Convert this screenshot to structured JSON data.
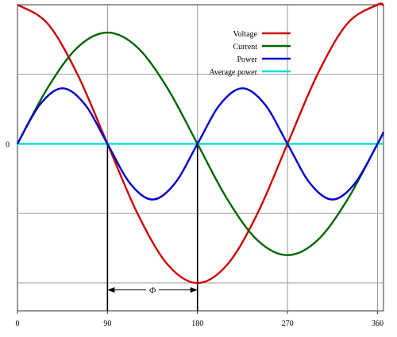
{
  "chart_data": {
    "type": "line",
    "title": "",
    "xlabel": "",
    "ylabel": "",
    "xlim": [
      0,
      366
    ],
    "ylim": [
      -1.2,
      1.0
    ],
    "x_ticks": [
      0,
      90,
      180,
      270,
      360
    ],
    "x_tick_labels": [
      "0",
      "90",
      "180",
      "270",
      "360"
    ],
    "y_tick_labels": [
      "0"
    ],
    "y_gridlines": [
      -1.0,
      -0.5,
      0,
      0.5
    ],
    "grid": true,
    "legend_position": "top-right",
    "series": [
      {
        "name": "Voltage",
        "color": "#cc0000",
        "x": [
          0,
          30,
          60,
          90,
          120,
          150,
          180,
          210,
          240,
          270,
          300,
          330,
          360,
          366
        ],
        "y": [
          1.0,
          0.866,
          0.5,
          0.0,
          -0.5,
          -0.866,
          -1.0,
          -0.866,
          -0.5,
          0.0,
          0.5,
          0.866,
          1.0,
          0.995
        ]
      },
      {
        "name": "Current",
        "color": "#006600",
        "x": [
          0,
          30,
          60,
          90,
          120,
          150,
          180,
          210,
          240,
          270,
          300,
          330,
          360,
          366
        ],
        "y": [
          0.0,
          0.4,
          0.693,
          0.8,
          0.693,
          0.4,
          0.0,
          -0.4,
          -0.693,
          -0.8,
          -0.693,
          -0.4,
          0.0,
          0.084
        ]
      },
      {
        "name": "Power",
        "color": "#0000cc",
        "x": [
          0,
          22.5,
          45,
          67.5,
          90,
          112.5,
          135,
          157.5,
          180,
          202.5,
          225,
          247.5,
          270,
          292.5,
          315,
          337.5,
          360,
          366
        ],
        "y": [
          0.0,
          0.283,
          0.4,
          0.283,
          0.0,
          -0.283,
          -0.4,
          -0.283,
          0.0,
          0.283,
          0.4,
          0.283,
          0.0,
          -0.283,
          -0.4,
          -0.283,
          0.0,
          0.083
        ]
      },
      {
        "name": "Average power",
        "color": "#00dddd",
        "x": [
          0,
          366
        ],
        "y": [
          0.0,
          0.0
        ]
      }
    ],
    "annotations": [
      {
        "type": "vertical-marker",
        "x": 90,
        "y_from": 0,
        "y_to": -1.2
      },
      {
        "type": "vertical-marker",
        "x": 180,
        "y_from": 0,
        "y_to": -1.2
      },
      {
        "type": "double-arrow",
        "x_from": 90,
        "x_to": 180,
        "y": -1.05,
        "label": "Φ"
      }
    ]
  }
}
